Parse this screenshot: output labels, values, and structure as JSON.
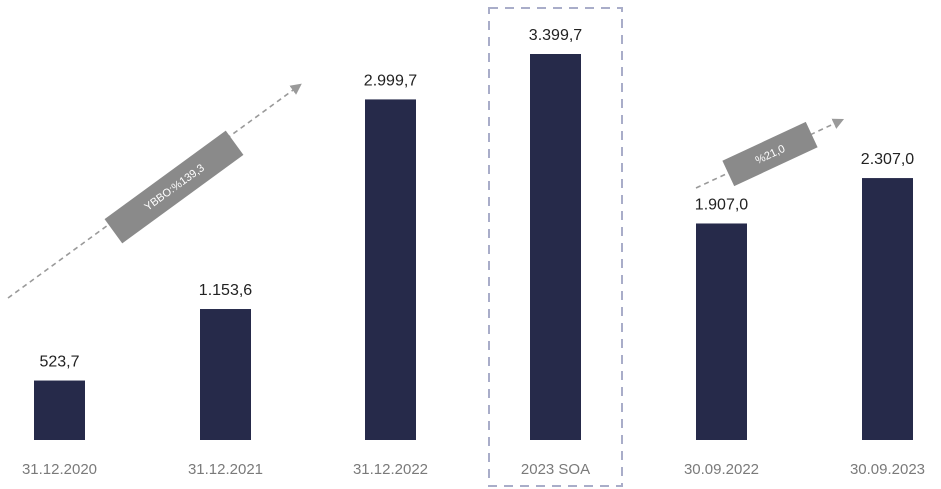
{
  "colors": {
    "bar": "#262a4a",
    "highlight_border": "#a9adc9",
    "badge": "#8a8a8a",
    "arrow": "#9a9a9a"
  },
  "chart_data": {
    "type": "bar",
    "categories": [
      "31.12.2020",
      "31.12.2021",
      "31.12.2022",
      "2023 SOA",
      "30.09.2022",
      "30.09.2023"
    ],
    "values": [
      523.7,
      1153.6,
      2999.7,
      3399.7,
      1907.0,
      2307.0
    ],
    "value_labels": [
      "523,7",
      "1.153,6",
      "2.999,7",
      "3.399,7",
      "1.907,0",
      "2.307,0"
    ],
    "highlighted_category": "2023 SOA",
    "ylim": [
      0,
      3399.7
    ],
    "grid": false,
    "legend": "none",
    "annotations": [
      {
        "text": "YBBO:%139,3",
        "from_category": "31.12.2020",
        "to_category": "31.12.2022"
      },
      {
        "text": "%21,0",
        "from_category": "30.09.2022",
        "to_category": "30.09.2023"
      }
    ]
  }
}
